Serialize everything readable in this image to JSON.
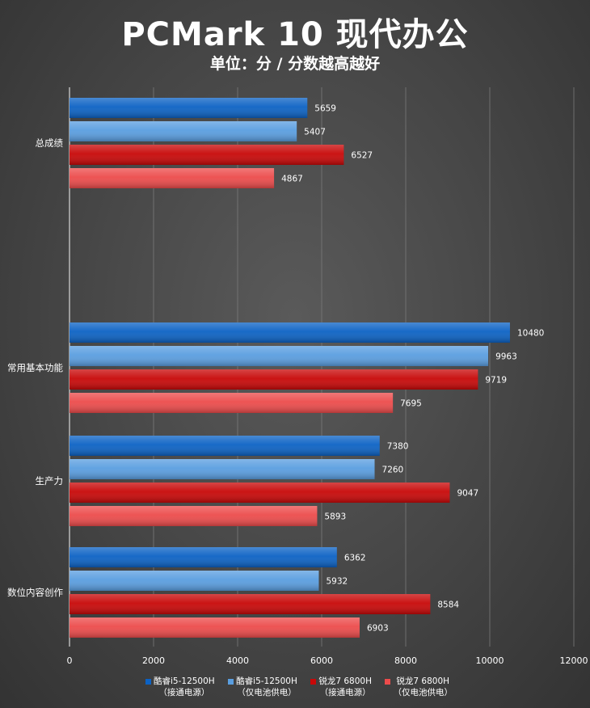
{
  "chart_data": {
    "type": "bar",
    "orientation": "horizontal",
    "title": "PCMark 10 现代办公",
    "subtitle": "单位：分 / 分数越高越好",
    "categories": [
      "总成绩",
      "常用基本功能",
      "生产力",
      "数位内容创作"
    ],
    "series": [
      {
        "name": "酷睿i5-12500H\n（接通电源）",
        "color": "#0c62c4",
        "values": [
          5659,
          10480,
          7380,
          6362
        ]
      },
      {
        "name": "酷睿i5-12500H\n（仅电池供电）",
        "color": "#5a9ee0",
        "values": [
          5407,
          9963,
          7260,
          5932
        ]
      },
      {
        "name": "锐龙7 6800H\n（接通电源）",
        "color": "#c80808",
        "values": [
          6527,
          9719,
          9047,
          8584
        ]
      },
      {
        "name": "锐龙7 6800H\n（仅电池供电）",
        "color": "#ec4b4b",
        "values": [
          4867,
          7695,
          5893,
          6903
        ]
      }
    ],
    "xlim": [
      0,
      12000
    ],
    "xticks": [
      0,
      2000,
      4000,
      6000,
      8000,
      10000,
      12000
    ],
    "grid": true,
    "legend_position": "bottom"
  }
}
